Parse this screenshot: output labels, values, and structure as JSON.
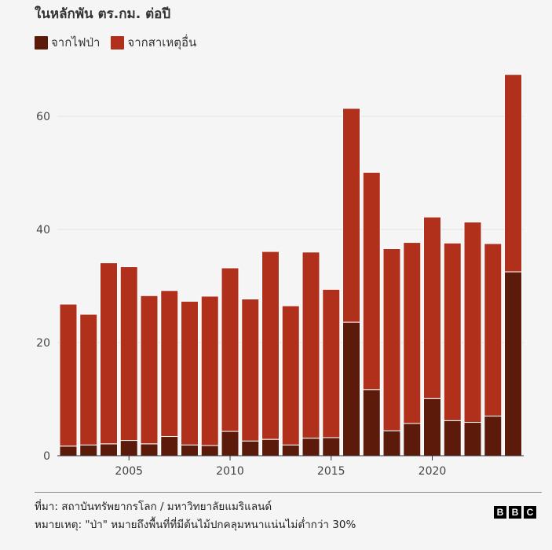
{
  "subtitle": "ในหลักพัน ตร.กม. ต่อปี",
  "legend": [
    {
      "label": "จากไฟป่า",
      "color": "#5c1a0b"
    },
    {
      "label": "จากสาเหตุอื่น",
      "color": "#b0301c"
    }
  ],
  "footer": {
    "source": "ที่มา: สถาบันทรัพยากรโลก / มหาวิทยาลัยแมริแลนด์",
    "note": "หมายเหตุ: \"ป่า\" หมายถึงพื้นที่ที่มีต้นไม้ปกคลุมหนาแน่นไม่ต่ำกว่า 30%"
  },
  "brand": {
    "letters": [
      "B",
      "B",
      "C"
    ]
  },
  "chart_data": {
    "type": "bar",
    "stacked": true,
    "x": [
      2002,
      2003,
      2004,
      2005,
      2006,
      2007,
      2008,
      2009,
      2010,
      2011,
      2012,
      2013,
      2014,
      2015,
      2016,
      2017,
      2018,
      2019,
      2020,
      2021,
      2022,
      2023,
      2024
    ],
    "series": [
      {
        "name": "จากไฟป่า",
        "color": "#5c1a0b",
        "values": [
          1.7,
          1.9,
          2.1,
          2.7,
          2.1,
          3.4,
          1.9,
          1.8,
          4.3,
          2.6,
          2.9,
          1.9,
          3.1,
          3.2,
          23.6,
          11.7,
          4.4,
          5.7,
          10.1,
          6.2,
          5.9,
          7.0,
          32.5
        ]
      },
      {
        "name": "จากสาเหตุอื่น",
        "color": "#b0301c",
        "values": [
          25.1,
          23.1,
          32.0,
          30.7,
          26.2,
          25.8,
          25.4,
          26.4,
          28.9,
          25.1,
          33.2,
          24.6,
          32.9,
          26.2,
          37.8,
          38.4,
          32.2,
          32.0,
          32.1,
          31.4,
          35.4,
          30.5,
          34.9
        ]
      }
    ],
    "yticks": [
      0,
      20,
      40,
      60
    ],
    "xticks": [
      2005,
      2010,
      2015,
      2020
    ],
    "ylim": [
      0,
      67.5
    ],
    "grid": true,
    "legend_position": "top-left"
  }
}
